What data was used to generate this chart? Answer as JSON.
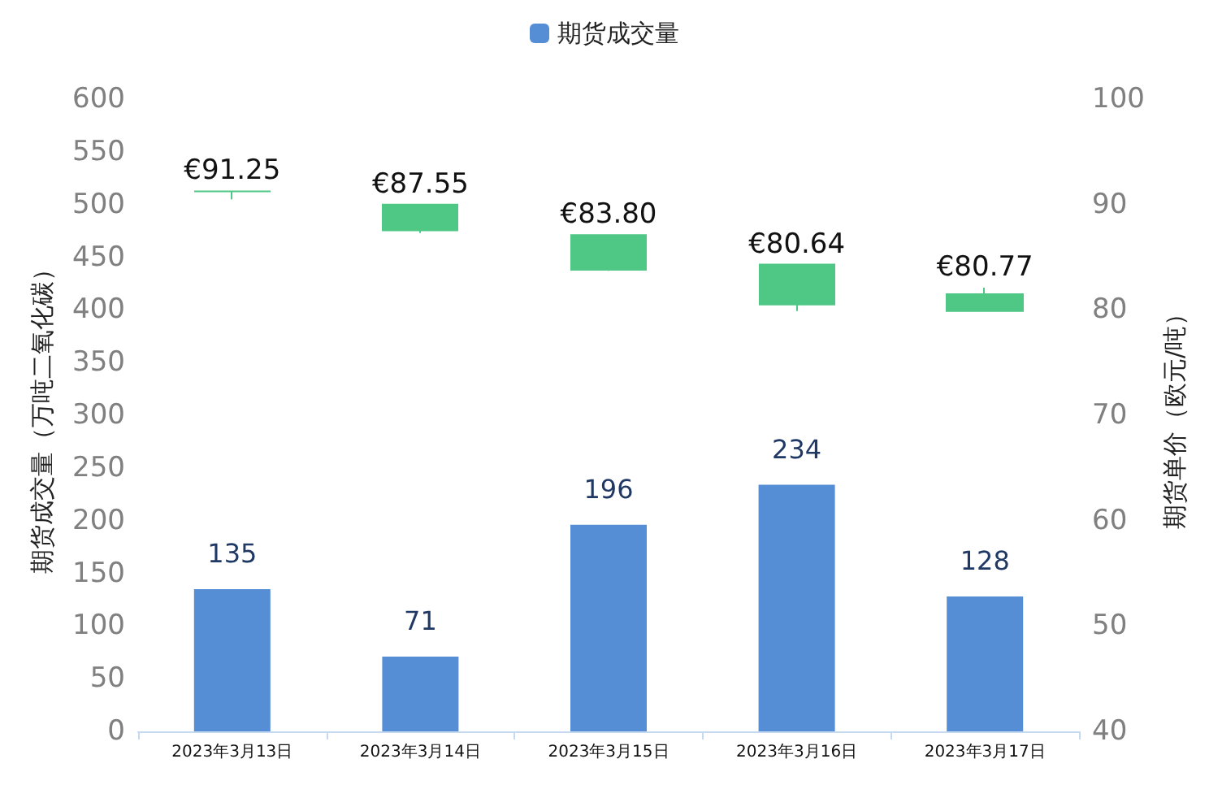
{
  "chart_data": {
    "type": "bar",
    "ylabel": "期货成交量（万吨二氧化碳）",
    "y2label": "期货单价（欧元/吨）",
    "categories": [
      "2023年3月13日",
      "2023年3月14日",
      "2023年3月15日",
      "2023年3月16日",
      "2023年3月17日"
    ],
    "series": [
      {
        "name": "期货成交量",
        "color": "#558ed5",
        "values": [
          135,
          71,
          196,
          234,
          128
        ]
      },
      {
        "type": "candlestick",
        "axis": "y2",
        "color": "#4fc785",
        "ohlc": [
          [
            91.25,
            91.25,
            90.5,
            91.25
          ],
          [
            90.0,
            90.0,
            87.3,
            87.55
          ],
          [
            87.1,
            87.1,
            83.7,
            83.8
          ],
          [
            84.3,
            84.3,
            79.9,
            80.5
          ],
          [
            81.5,
            82.1,
            79.9,
            79.9
          ]
        ],
        "value_labels": [
          "€91.25",
          "€87.55",
          "€83.80",
          "€80.64",
          "€80.77"
        ]
      }
    ],
    "ylim": [
      0,
      600
    ],
    "yticks": [
      0,
      50,
      100,
      150,
      200,
      250,
      300,
      350,
      400,
      450,
      500,
      550,
      600
    ],
    "y2lim": [
      40,
      100
    ],
    "y2ticks": [
      40,
      50,
      60,
      70,
      80,
      90,
      100
    ],
    "data_labels": true,
    "grid": false,
    "legend": "top"
  }
}
